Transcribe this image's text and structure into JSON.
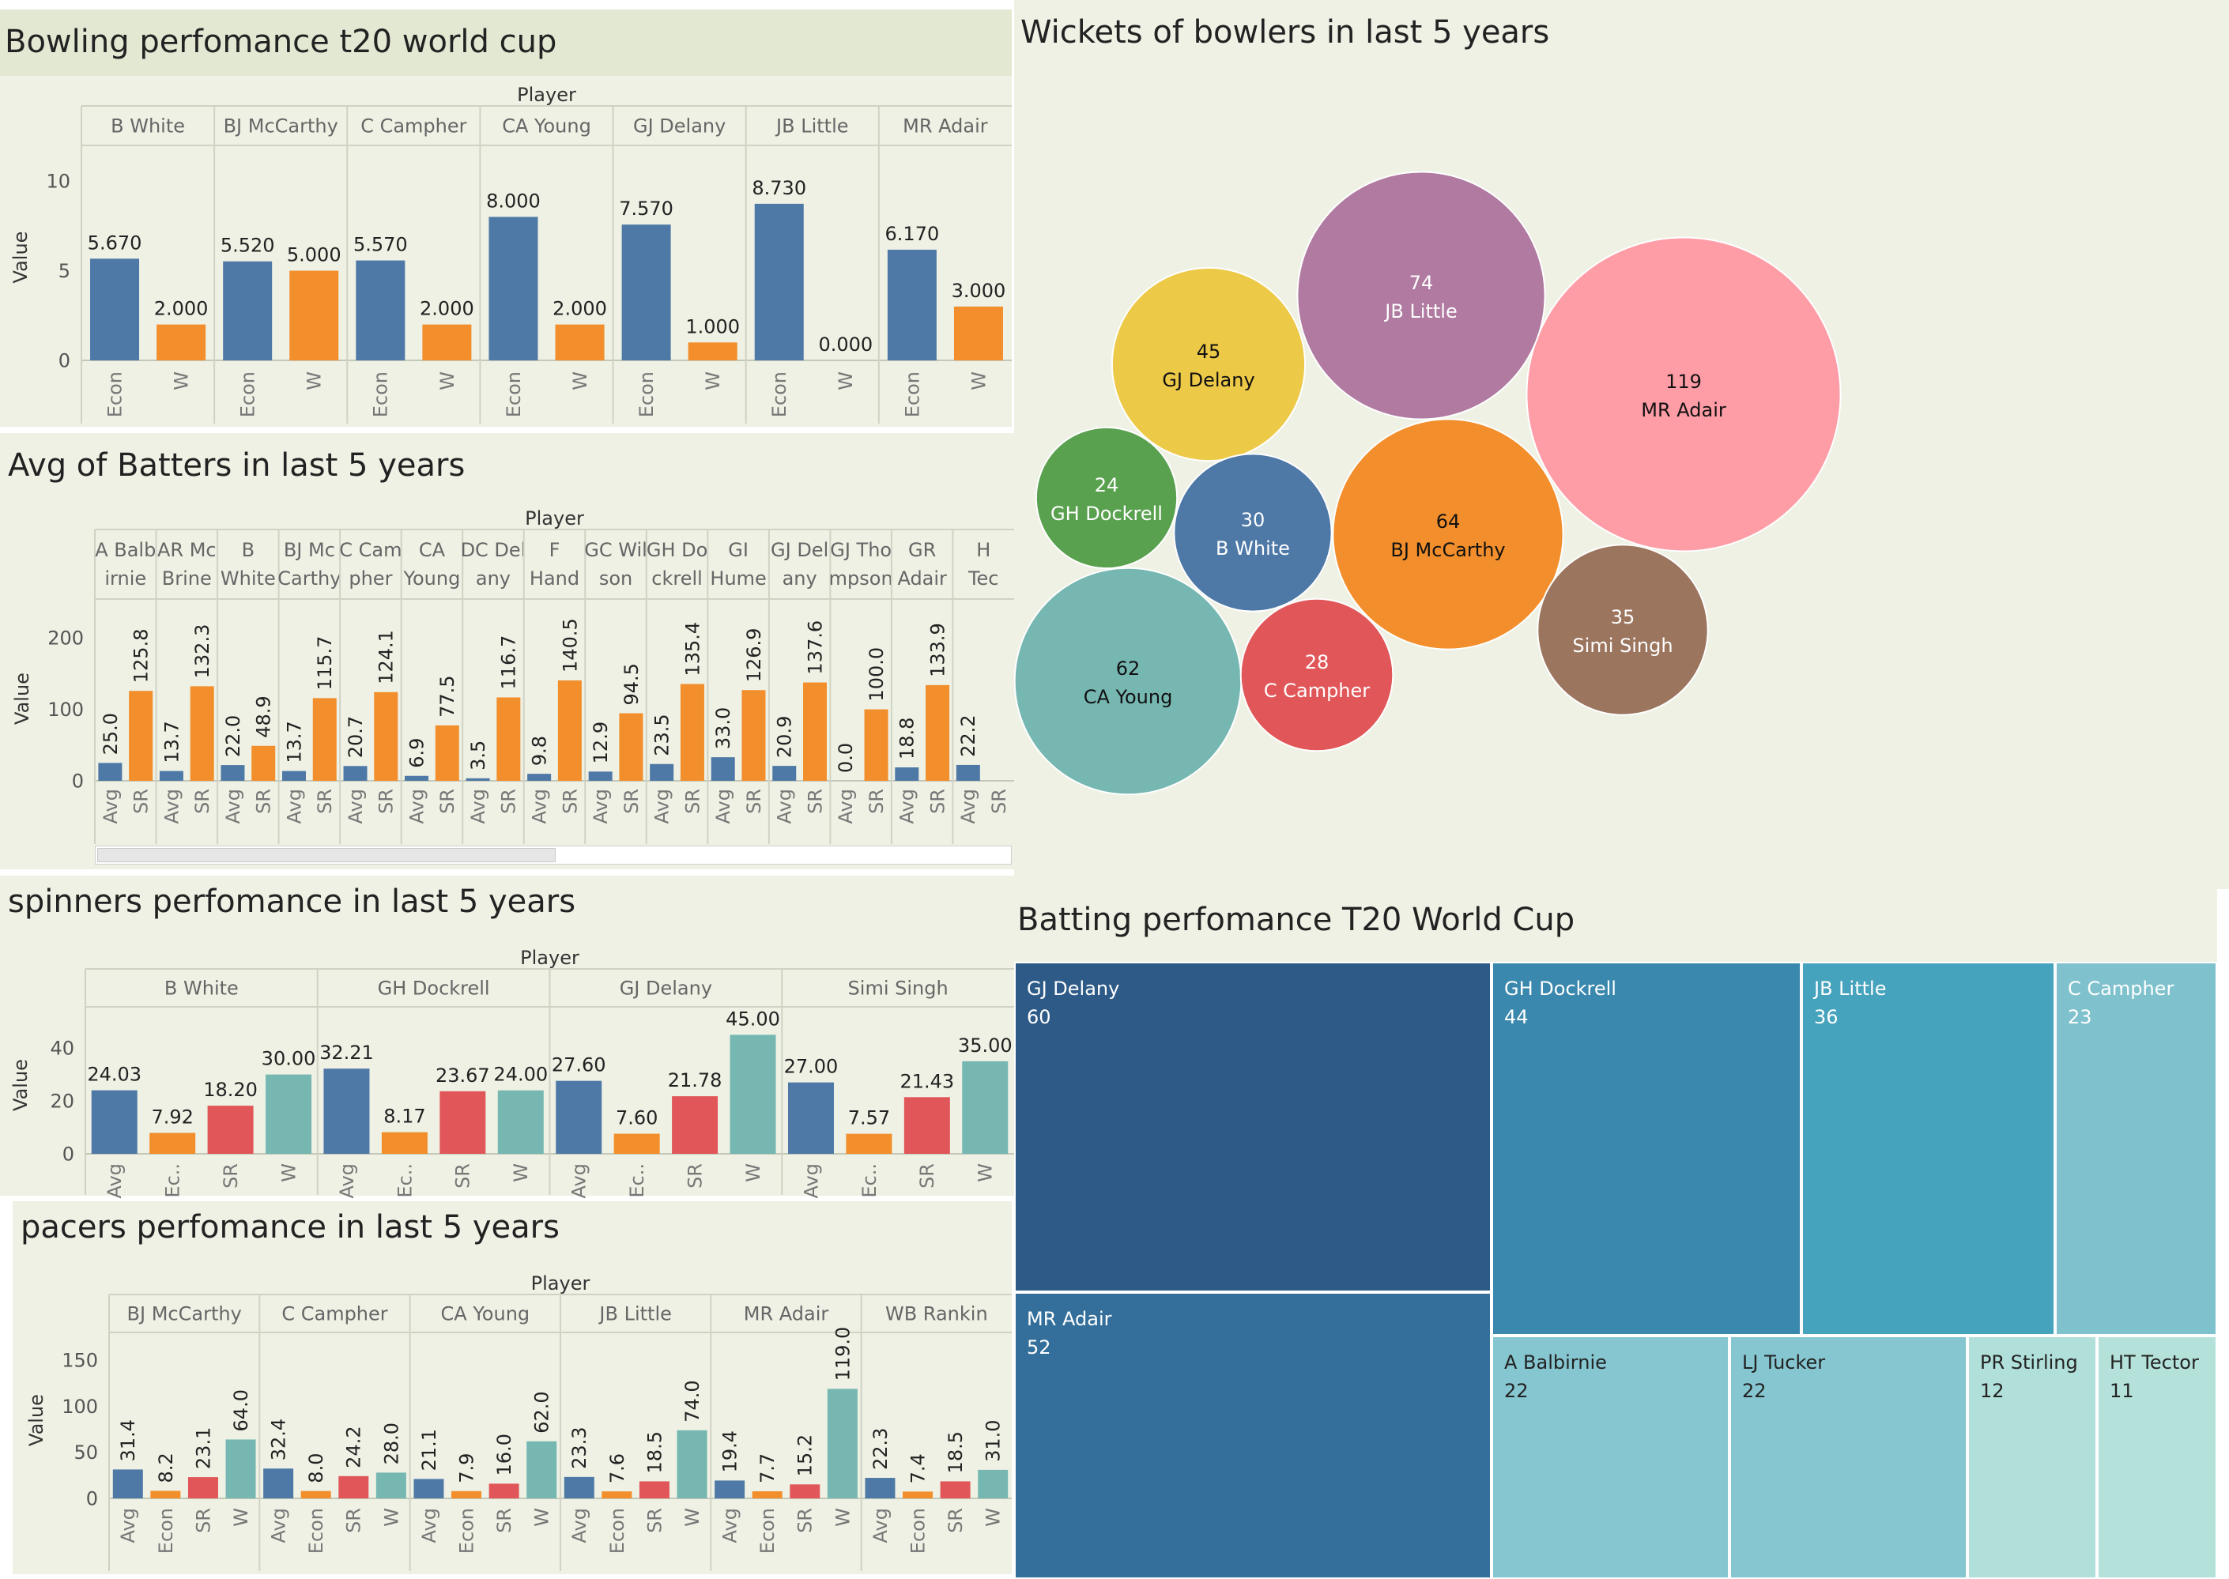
{
  "colors": {
    "panel": "#eef1e4",
    "title_band": "#e3e8d3",
    "blue": "#4e79a7",
    "orange": "#f28e2b",
    "red": "#e15759",
    "teal": "#76b7b2"
  },
  "bowling_t20": {
    "title": "Bowling perfomance t20 world cup",
    "header": "Player",
    "ylabel": "Value",
    "chart_data": {
      "type": "bar",
      "categories": [
        "B White",
        "BJ McCarthy",
        "C Campher",
        "CA Young",
        "GJ Delany",
        "JB Little",
        "MR Adair"
      ],
      "measures": [
        "Econ",
        "W"
      ],
      "series": [
        {
          "name": "Econ",
          "values": [
            5.67,
            5.52,
            5.57,
            8.0,
            7.57,
            8.73,
            6.17
          ]
        },
        {
          "name": "W",
          "values": [
            2.0,
            5.0,
            2.0,
            2.0,
            1.0,
            0.0,
            3.0
          ]
        }
      ],
      "value_labels": [
        [
          "5.670",
          "2.000"
        ],
        [
          "5.520",
          "5.000"
        ],
        [
          "5.570",
          "2.000"
        ],
        [
          "8.000",
          "2.000"
        ],
        [
          "7.570",
          "1.000"
        ],
        [
          "8.730",
          "0.000"
        ],
        [
          "6.170",
          "3.000"
        ]
      ],
      "yticks": [
        0,
        5,
        10
      ],
      "ylim": [
        0,
        11.5
      ]
    }
  },
  "batters_avg": {
    "title": "Avg of Batters in last 5 years",
    "header": "Player",
    "ylabel": "Value",
    "chart_data": {
      "type": "bar",
      "categories": [
        "A Balbirnie",
        "AR McBrine",
        "B White",
        "BJ McCarthy",
        "C Campher",
        "CA Young",
        "DC Delany",
        "F Hand",
        "GC Wilson",
        "GH Dockrell",
        "GI Hume",
        "GJ Delany",
        "GJ Thompson",
        "GR Adair",
        "HT Tector"
      ],
      "category_label_lines": [
        [
          "A Balb",
          "irnie"
        ],
        [
          "AR Mc",
          "Brine"
        ],
        [
          "B",
          "White"
        ],
        [
          "BJ Mc",
          "Carthy"
        ],
        [
          "C Cam",
          "pher"
        ],
        [
          "CA",
          "Young"
        ],
        [
          "DC Del",
          "any"
        ],
        [
          "F",
          "Hand"
        ],
        [
          "GC Wil",
          "son"
        ],
        [
          "GH Do",
          "ckrell"
        ],
        [
          "GI",
          "Hume"
        ],
        [
          "GJ Del",
          "any"
        ],
        [
          "GJ Tho",
          "mpson"
        ],
        [
          "GR",
          "Adair"
        ],
        [
          "H",
          "Tec"
        ]
      ],
      "measures": [
        "Avg",
        "SR"
      ],
      "series": [
        {
          "name": "Avg",
          "values": [
            25.0,
            13.7,
            22.0,
            13.7,
            20.7,
            6.9,
            3.5,
            9.8,
            12.9,
            23.5,
            33.0,
            20.9,
            0.0,
            18.8,
            22.2
          ]
        },
        {
          "name": "SR",
          "values": [
            125.8,
            132.3,
            48.9,
            115.7,
            124.1,
            77.5,
            116.7,
            140.5,
            94.5,
            135.4,
            126.9,
            137.6,
            100.0,
            133.9,
            null
          ]
        }
      ],
      "value_labels": [
        [
          "25.0",
          "125.8"
        ],
        [
          "13.7",
          "132.3"
        ],
        [
          "22.0",
          "48.9"
        ],
        [
          "13.7",
          "115.7"
        ],
        [
          "20.7",
          "124.1"
        ],
        [
          "6.9",
          "77.5"
        ],
        [
          "3.5",
          "116.7"
        ],
        [
          "9.8",
          "140.5"
        ],
        [
          "12.9",
          "94.5"
        ],
        [
          "23.5",
          "135.4"
        ],
        [
          "33.0",
          "126.9"
        ],
        [
          "20.9",
          "137.6"
        ],
        [
          "0.0",
          "100.0"
        ],
        [
          "18.8",
          "133.9"
        ],
        [
          "22.2",
          ""
        ]
      ],
      "yticks": [
        0,
        100,
        200
      ],
      "ylim": [
        0,
        230
      ]
    }
  },
  "spinners": {
    "title": "spinners perfomance in last 5 years",
    "header": "Player",
    "ylabel": "Value",
    "chart_data": {
      "type": "bar",
      "categories": [
        "B White",
        "GH Dockrell",
        "GJ Delany",
        "Simi Singh"
      ],
      "measures": [
        "Avg",
        "Ec..",
        "SR",
        "W"
      ],
      "series": [
        {
          "name": "Avg",
          "values": [
            24.03,
            32.21,
            27.6,
            27.0
          ]
        },
        {
          "name": "Econ",
          "values": [
            7.92,
            8.17,
            7.6,
            7.57
          ]
        },
        {
          "name": "SR",
          "values": [
            18.2,
            23.67,
            21.78,
            21.43
          ]
        },
        {
          "name": "W",
          "values": [
            30.0,
            24.0,
            45.0,
            35.0
          ]
        }
      ],
      "value_labels": [
        [
          "24.03",
          "7.92",
          "18.20",
          "30.00"
        ],
        [
          "32.21",
          "8.17",
          "23.67",
          "24.00"
        ],
        [
          "27.60",
          "7.60",
          "21.78",
          "45.00"
        ],
        [
          "27.00",
          "7.57",
          "21.43",
          "35.00"
        ]
      ],
      "yticks": [
        0,
        20,
        40
      ],
      "ylim": [
        0,
        52
      ]
    }
  },
  "pacers": {
    "title": "pacers perfomance in last 5 years",
    "header": "Player",
    "ylabel": "Value",
    "chart_data": {
      "type": "bar",
      "categories": [
        "BJ McCarthy",
        "C Campher",
        "CA Young",
        "JB Little",
        "MR Adair",
        "WB Rankin"
      ],
      "measures": [
        "Avg",
        "Econ",
        "SR",
        "W"
      ],
      "series": [
        {
          "name": "Avg",
          "values": [
            31.4,
            32.4,
            21.1,
            23.3,
            19.4,
            22.3
          ]
        },
        {
          "name": "Econ",
          "values": [
            8.2,
            8.0,
            7.9,
            7.6,
            7.7,
            7.4
          ]
        },
        {
          "name": "SR",
          "values": [
            23.1,
            24.2,
            16.0,
            18.5,
            15.2,
            18.5
          ]
        },
        {
          "name": "W",
          "values": [
            64.0,
            28.0,
            62.0,
            74.0,
            119.0,
            31.0
          ]
        }
      ],
      "value_labels": [
        [
          "31.4",
          "8.2",
          "23.1",
          "64.0"
        ],
        [
          "32.4",
          "8.0",
          "24.2",
          "28.0"
        ],
        [
          "21.1",
          "7.9",
          "16.0",
          "62.0"
        ],
        [
          "23.3",
          "7.6",
          "18.5",
          "74.0"
        ],
        [
          "19.4",
          "7.7",
          "15.2",
          "119.0"
        ],
        [
          "22.3",
          "7.4",
          "18.5",
          "31.0"
        ]
      ],
      "yticks": [
        0,
        50,
        100,
        150
      ],
      "ylim": [
        0,
        170
      ]
    }
  },
  "wickets": {
    "title": "Wickets of bowlers in last 5 years",
    "chart_data": {
      "type": "bubble",
      "items": [
        {
          "name": "MR Adair",
          "value": 119,
          "color": "#ff9da7"
        },
        {
          "name": "JB Little",
          "value": 74,
          "color": "#b07aa1"
        },
        {
          "name": "BJ McCarthy",
          "value": 64,
          "color": "#f28e2b"
        },
        {
          "name": "CA Young",
          "value": 62,
          "color": "#76b7b2"
        },
        {
          "name": "GJ Delany",
          "value": 45,
          "color": "#edc948"
        },
        {
          "name": "Simi Singh",
          "value": 35,
          "color": "#9c755f"
        },
        {
          "name": "B White",
          "value": 30,
          "color": "#4e79a7"
        },
        {
          "name": "C Campher",
          "value": 28,
          "color": "#e15759"
        },
        {
          "name": "GH Dockrell",
          "value": 24,
          "color": "#59a14f"
        }
      ]
    }
  },
  "batting_t20": {
    "title": "Batting perfomance T20 World Cup",
    "chart_data": {
      "type": "treemap",
      "items": [
        {
          "name": "GJ Delany",
          "value": 60,
          "color": "#2e5a87"
        },
        {
          "name": "MR Adair",
          "value": 52,
          "color": "#336f9a"
        },
        {
          "name": "GH Dockrell",
          "value": 44,
          "color": "#3a88ad"
        },
        {
          "name": "JB Little",
          "value": 36,
          "color": "#46a3bd"
        },
        {
          "name": "C Campher",
          "value": 23,
          "color": "#7fc2cd"
        },
        {
          "name": "A Balbirnie",
          "value": 22,
          "color": "#86c6d0"
        },
        {
          "name": "LJ Tucker",
          "value": 22,
          "color": "#86c6d0"
        },
        {
          "name": "PR Stirling",
          "value": 12,
          "color": "#b1dfd9"
        },
        {
          "name": "HT Tector",
          "value": 11,
          "color": "#b4e2db"
        }
      ]
    }
  }
}
